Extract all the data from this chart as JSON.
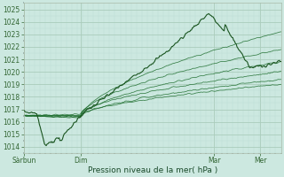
{
  "title": "Pression niveau de la mer( hPa )",
  "ylim": [
    1013.5,
    1025.5
  ],
  "yticks": [
    1014,
    1015,
    1016,
    1017,
    1018,
    1019,
    1020,
    1021,
    1022,
    1023,
    1024,
    1025
  ],
  "xtick_labels": [
    "Sàrbun",
    "Dim",
    "Mar",
    "Mer"
  ],
  "xtick_positions": [
    0,
    0.22,
    0.74,
    0.92
  ],
  "bg_color": "#cce8e0",
  "grid_major_color": "#aaccbb",
  "grid_minor_color": "#bbddd4",
  "line_color": "#1a6b2a",
  "main_line_color": "#1a5520",
  "n": 300
}
